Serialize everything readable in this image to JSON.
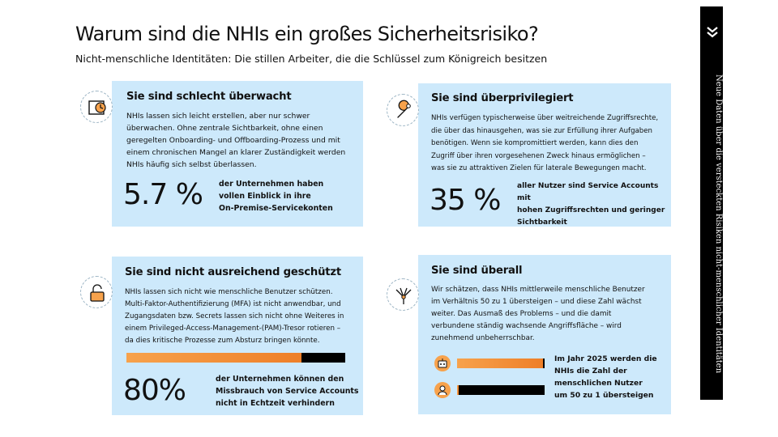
{
  "header": {
    "title": "Warum sind die NHIs ein großes Sicherheitsrisiko?",
    "subtitle": "Nicht-menschliche Identitäten: Die stillen Arbeiter, die die Schlüssel zum Königreich besitzen"
  },
  "sidebar": {
    "text": "Neue Daten über die versteckten Risiken nicht-menschlicher Identitäten",
    "icon": "double-chevron-down-icon"
  },
  "cards": {
    "monitored": {
      "heading": "Sie sind schlecht überwacht",
      "icon": "monitor-clock-icon",
      "body": "NHIs lassen sich leicht erstellen, aber nur schwer\nüberwachen. Ohne zentrale Sichtbarkeit, ohne einen\ngeregelten Onboarding- und Offboarding-Prozess und mit\neinem chronischen Mangel an klarer Zuständigkeit werden\nNHIs häufig sich selbst überlassen.",
      "stat_value": "5.7 %",
      "stat_text": "der Unternehmen haben\nvollen Einblick in ihre\nOn-Premise-Servicekonten"
    },
    "privileged": {
      "heading": "Sie sind überprivilegiert",
      "icon": "wrench-icon",
      "body": "NHIs verfügen typischerweise über weitreichende Zugriffsrechte,\ndie über das hinausgehen, was sie zur Erfüllung ihrer Aufgaben\nbenötigen. Wenn sie kompromittiert werden, kann dies den\nZugriff über ihren vorgesehenen Zweck hinaus ermöglichen –\nwas sie zu attraktiven Zielen für laterale Bewegungen macht.",
      "stat_value": "35 %",
      "stat_text": "aller Nutzer sind Service Accounts mit\nhohen Zugriffsrechten und geringer\nSichtbarkeit"
    },
    "protected": {
      "heading": "Sie sind nicht ausreichend geschützt",
      "icon": "unlocked-padlock-icon",
      "body": "NHIs lassen sich nicht wie menschliche Benutzer schützen.\nMulti-Faktor-Authentifizierung (MFA) ist nicht anwendbar, und\nZugangsdaten bzw. Secrets lassen sich nicht ohne Weiteres in\neinem Privileged-Access-Management-(PAM)-Tresor rotieren –\nda dies kritische Prozesse zum Absturz bringen könnte.",
      "stat_value": "80%",
      "stat_fraction": 0.8,
      "stat_text": "der Unternehmen können den\nMissbrauch von Service Accounts\nnicht in Echtzeit verhindern"
    },
    "everywhere": {
      "heading": "Sie sind überall",
      "icon": "network-fork-icon",
      "body": "Wir schätzen, dass NHIs mittlerweile menschliche Benutzer\nim Verhältnis 50 zu 1 übersteigen – und diese Zahl wächst\nweiter. Das Ausmaß des Problems – und die damit\nverbundene ständig wachsende Angriffsfläche – wird\nzunehmend unbeherrschbar.",
      "bar_nhi_fraction": 0.98,
      "bar_human_fraction": 0.02,
      "bar_nhi_icon": "robot-icon",
      "bar_human_icon": "person-icon",
      "stat_text": "Im Jahr 2025 werden die\nNHIs die Zahl der\nmenschlichen Nutzer\num 50 zu 1 übersteigen"
    }
  },
  "colors": {
    "card_bg": "#cde9fb",
    "accent_orange": "#f7a24c",
    "bar_black": "#000000"
  }
}
